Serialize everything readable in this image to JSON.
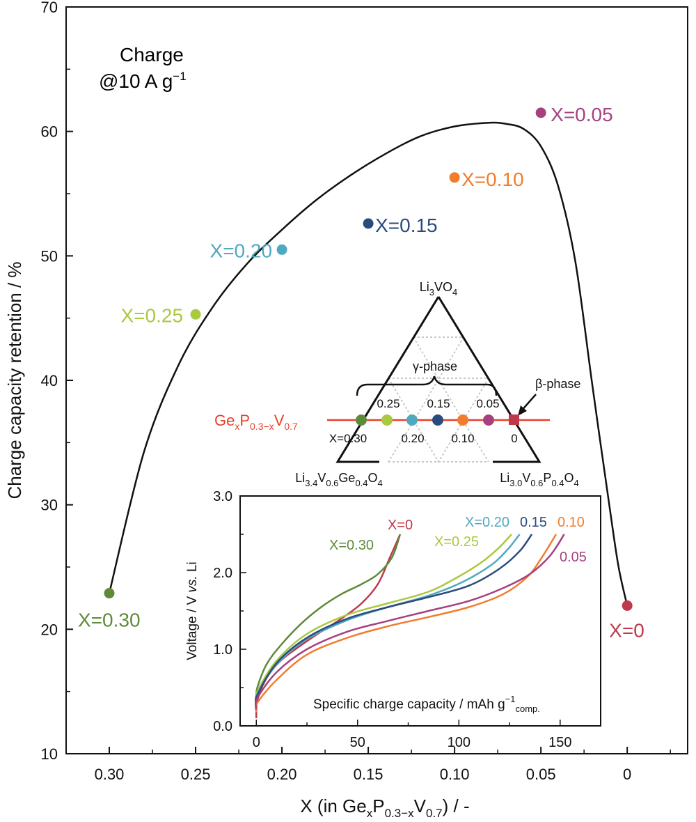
{
  "colors": {
    "x0": "#c0394b",
    "x005": "#a5417f",
    "x010": "#f37b2d",
    "x015": "#2b4a7e",
    "x020": "#4fa9c0",
    "x025": "#a9c93f",
    "x030": "#5e8a3a",
    "line": "#e8402a",
    "dash": "#c8c8c8"
  },
  "main": {
    "annotation_line1": "Charge",
    "annotation_line2": "@10 A g",
    "annotation_sup": "−1",
    "ylabel": "Charge capacity retention / %",
    "xlabel_pre": "X (in Ge",
    "xlabel_sub1": "x",
    "xlabel_mid1": "P",
    "xlabel_sub2": "0.3−x",
    "xlabel_mid2": "V",
    "xlabel_sub3": "0.7",
    "xlabel_post": ") / -",
    "ytick_labels": [
      "10",
      "20",
      "30",
      "40",
      "50",
      "60",
      "70"
    ],
    "xtick_labels": [
      "0.30",
      "0.25",
      "0.20",
      "0.15",
      "0.10",
      "0.05",
      "0"
    ]
  },
  "chart_data": [
    {
      "type": "scatter",
      "xlabel": "X (in GexP0.3−xV0.7) / -",
      "ylabel": "Charge capacity retention / %",
      "xlim": [
        0.325,
        -0.035
      ],
      "ylim": [
        10,
        70
      ],
      "x_reversed": true,
      "annotation": "Charge @10 A g−1",
      "points": [
        {
          "label": "X=0.30",
          "x": 0.3,
          "y": 22.9,
          "color": "#5e8a3a"
        },
        {
          "label": "X=0.25",
          "x": 0.25,
          "y": 45.3,
          "color": "#a9c93f"
        },
        {
          "label": "X=0.20",
          "x": 0.2,
          "y": 50.5,
          "color": "#4fa9c0"
        },
        {
          "label": "X=0.15",
          "x": 0.15,
          "y": 52.6,
          "color": "#2b4a7e"
        },
        {
          "label": "X=0.10",
          "x": 0.1,
          "y": 56.3,
          "color": "#f37b2d"
        },
        {
          "label": "X=0.05",
          "x": 0.05,
          "y": 61.5,
          "color": "#a5417f"
        },
        {
          "label": "X=0",
          "x": 0.0,
          "y": 21.9,
          "color": "#c0394b"
        }
      ],
      "trend_curve": {
        "x": [
          0.3,
          0.28,
          0.26,
          0.24,
          0.22,
          0.2,
          0.18,
          0.16,
          0.14,
          0.12,
          0.1,
          0.08,
          0.07,
          0.06,
          0.05,
          0.04,
          0.03,
          0.02,
          0.01,
          0.005,
          0.0
        ],
        "y": [
          22.9,
          34.2,
          41.2,
          45.9,
          49.4,
          52.1,
          54.5,
          56.5,
          58.2,
          59.6,
          60.4,
          60.7,
          60.6,
          60.2,
          58.8,
          55.6,
          49.5,
          39.4,
          29.6,
          25.0,
          21.9
        ]
      }
    },
    {
      "type": "line",
      "xlabel": "Specific charge capacity / mAh g−1comp.",
      "ylabel": "Voltage / V vs. Li",
      "xlim": [
        -8,
        170
      ],
      "ylim": [
        0.0,
        3.0
      ],
      "x_ticks": [
        "0",
        "50",
        "100",
        "150"
      ],
      "y_ticks": [
        "0.0",
        "1.0",
        "2.0",
        "3.0"
      ],
      "series": [
        {
          "name": "X=0",
          "color": "#c0394b",
          "x": [
            0,
            0.5,
            5,
            12,
            22,
            32,
            42,
            52,
            60,
            66,
            71
          ],
          "y": [
            0.1,
            0.33,
            0.62,
            0.85,
            1.05,
            1.23,
            1.4,
            1.6,
            1.85,
            2.2,
            2.5
          ]
        },
        {
          "name": "X=0.30",
          "color": "#5e8a3a",
          "x": [
            0,
            0.5,
            5,
            12,
            22,
            32,
            42,
            52,
            60,
            67,
            71
          ],
          "y": [
            0.35,
            0.5,
            0.8,
            1.05,
            1.33,
            1.55,
            1.72,
            1.85,
            1.98,
            2.2,
            2.5
          ]
        },
        {
          "name": "X=0.25",
          "color": "#a9c93f",
          "x": [
            0,
            0.5,
            10,
            25,
            45,
            65,
            85,
            100,
            112,
            120,
            126
          ],
          "y": [
            0.3,
            0.45,
            0.85,
            1.2,
            1.45,
            1.6,
            1.75,
            1.95,
            2.15,
            2.33,
            2.5
          ]
        },
        {
          "name": "X=0.20",
          "color": "#4fa9c0",
          "x": [
            0,
            0.5,
            10,
            25,
            45,
            65,
            85,
            102,
            116,
            124,
            130
          ],
          "y": [
            0.28,
            0.42,
            0.8,
            1.13,
            1.38,
            1.55,
            1.7,
            1.88,
            2.1,
            2.3,
            2.5
          ]
        },
        {
          "name": "0.15",
          "color": "#2b4a7e",
          "x": [
            0,
            0.5,
            10,
            25,
            45,
            65,
            85,
            105,
            120,
            130,
            136
          ],
          "y": [
            0.26,
            0.4,
            0.82,
            1.15,
            1.4,
            1.55,
            1.68,
            1.83,
            2.05,
            2.28,
            2.5
          ]
        },
        {
          "name": "0.10",
          "color": "#f37b2d",
          "x": [
            0,
            0.5,
            10,
            25,
            45,
            65,
            85,
            105,
            122,
            134,
            141,
            148
          ],
          "y": [
            0.18,
            0.3,
            0.6,
            0.93,
            1.15,
            1.3,
            1.42,
            1.55,
            1.72,
            1.95,
            2.2,
            2.5
          ]
        },
        {
          "name": "0.05",
          "color": "#a5417f",
          "x": [
            0,
            0.5,
            10,
            25,
            45,
            65,
            85,
            105,
            122,
            135,
            145,
            152
          ],
          "y": [
            0.22,
            0.36,
            0.7,
            1.0,
            1.23,
            1.37,
            1.5,
            1.63,
            1.8,
            1.98,
            2.22,
            2.5
          ]
        }
      ]
    }
  ],
  "ternary": {
    "top_label": "Li3VO4",
    "top_pre": "Li",
    "top_sub1": "3",
    "top_mid": "VO",
    "top_sub2": "4",
    "left_label_pre": "Li",
    "left_sub1": "3.4",
    "left_mid1": "V",
    "left_sub2": "0.6",
    "left_mid2": "Ge",
    "left_sub3": "0.4",
    "left_mid3": "O",
    "left_sub4": "4",
    "right_label_pre": "Li",
    "right_sub1": "3.0",
    "right_mid1": "V",
    "right_sub2": "0.6",
    "right_mid2": "P",
    "right_sub3": "0.4",
    "right_mid3": "O",
    "right_sub4": "4",
    "gamma": "γ-phase",
    "beta": "β-phase",
    "line_pre": "Ge",
    "line_sub1": "x",
    "line_mid1": "P",
    "line_sub2": "0.3−x",
    "line_mid2": "V",
    "line_sub3": "0.7",
    "upper_labels": [
      "0.25",
      "0.15",
      "0.05"
    ],
    "lower_labels": [
      "X=0.30",
      "0.20",
      "0.10",
      "0"
    ]
  }
}
